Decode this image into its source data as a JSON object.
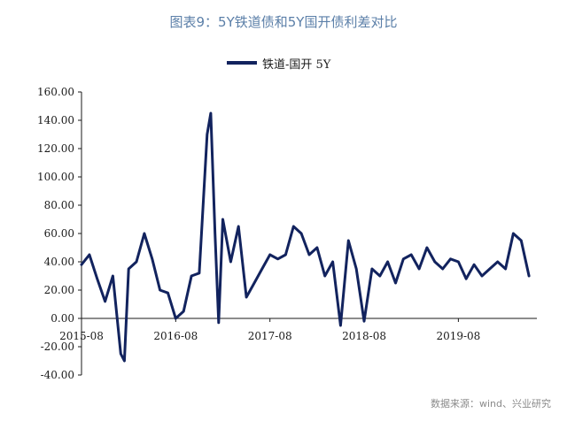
{
  "chart_data": {
    "type": "line",
    "title": "图表9：5Y铁道债和5Y国开债利差对比",
    "source": "数据来源：wind、兴业研究",
    "xlabel": "",
    "ylabel": "",
    "ylim": [
      -40,
      160
    ],
    "y_ticks": [
      "160.00",
      "140.00",
      "120.00",
      "100.00",
      "80.00",
      "60.00",
      "40.00",
      "20.00",
      "0.00",
      "-20.00",
      "-40.00"
    ],
    "x_ticks": [
      "2015-08",
      "2016-08",
      "2017-08",
      "2018-08",
      "2019-08"
    ],
    "x_range": [
      "2015-08",
      "2020-06"
    ],
    "grid": false,
    "legend_position": "top-center",
    "color": "#12235e",
    "series": [
      {
        "name": "铁道-国开 5Y",
        "x": [
          "2015-08",
          "2015-09",
          "2015-10",
          "2015-11",
          "2015-12",
          "2016-01",
          "2016-01-15",
          "2016-02",
          "2016-03",
          "2016-04",
          "2016-05",
          "2016-06",
          "2016-07",
          "2016-08",
          "2016-09",
          "2016-10",
          "2016-11",
          "2016-12",
          "2016-12-15",
          "2017-01",
          "2017-01-15",
          "2017-02",
          "2017-03",
          "2017-04",
          "2017-05",
          "2017-06",
          "2017-07",
          "2017-08",
          "2017-09",
          "2017-10",
          "2017-11",
          "2017-12",
          "2018-01",
          "2018-02",
          "2018-03",
          "2018-04",
          "2018-05",
          "2018-06",
          "2018-07",
          "2018-08",
          "2018-09",
          "2018-10",
          "2018-11",
          "2018-12",
          "2019-01",
          "2019-02",
          "2019-03",
          "2019-04",
          "2019-05",
          "2019-06",
          "2019-07",
          "2019-08",
          "2019-09",
          "2019-10",
          "2019-11",
          "2019-12",
          "2020-01",
          "2020-02",
          "2020-03",
          "2020-04",
          "2020-05"
        ],
        "y": [
          38,
          45,
          28,
          12,
          30,
          -25,
          -30,
          35,
          40,
          60,
          42,
          20,
          18,
          0,
          5,
          30,
          32,
          130,
          145,
          60,
          -3,
          70,
          40,
          65,
          15,
          25,
          35,
          45,
          42,
          45,
          65,
          60,
          45,
          50,
          30,
          40,
          -5,
          55,
          35,
          -2,
          35,
          30,
          40,
          25,
          42,
          45,
          35,
          50,
          40,
          35,
          42,
          40,
          28,
          38,
          30,
          35,
          40,
          35,
          60,
          55,
          30
        ]
      }
    ]
  }
}
